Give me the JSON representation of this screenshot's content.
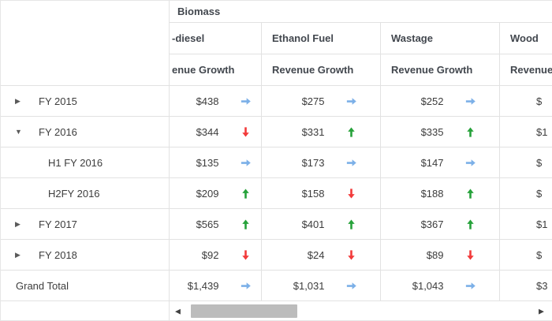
{
  "pivot": {
    "top_header": "Biomass",
    "columns": [
      {
        "name": "-diesel",
        "measure": "enue Growth"
      },
      {
        "name": "Ethanol Fuel",
        "measure": "Revenue Growth"
      },
      {
        "name": "Wastage",
        "measure": "Revenue Growth"
      },
      {
        "name": "Wood",
        "measure": "Revenue"
      }
    ],
    "rows": [
      {
        "label": "FY 2015",
        "expand": "collapsed",
        "cells": [
          {
            "value": "$438",
            "trend": "flat"
          },
          {
            "value": "$275",
            "trend": "flat"
          },
          {
            "value": "$252",
            "trend": "flat"
          },
          {
            "value": "$",
            "trend": "none"
          }
        ]
      },
      {
        "label": "FY 2016",
        "expand": "expanded",
        "cells": [
          {
            "value": "$344",
            "trend": "down"
          },
          {
            "value": "$331",
            "trend": "up"
          },
          {
            "value": "$335",
            "trend": "up"
          },
          {
            "value": "$1",
            "trend": "none"
          }
        ]
      },
      {
        "label": "H1 FY 2016",
        "expand": "none",
        "cells": [
          {
            "value": "$135",
            "trend": "flat"
          },
          {
            "value": "$173",
            "trend": "flat"
          },
          {
            "value": "$147",
            "trend": "flat"
          },
          {
            "value": "$",
            "trend": "none"
          }
        ]
      },
      {
        "label": "H2FY 2016",
        "expand": "none",
        "cells": [
          {
            "value": "$209",
            "trend": "up"
          },
          {
            "value": "$158",
            "trend": "down"
          },
          {
            "value": "$188",
            "trend": "up"
          },
          {
            "value": "$",
            "trend": "none"
          }
        ]
      },
      {
        "label": "FY 2017",
        "expand": "collapsed",
        "cells": [
          {
            "value": "$565",
            "trend": "up"
          },
          {
            "value": "$401",
            "trend": "up"
          },
          {
            "value": "$367",
            "trend": "up"
          },
          {
            "value": "$1",
            "trend": "none"
          }
        ]
      },
      {
        "label": "FY 2018",
        "expand": "collapsed",
        "cells": [
          {
            "value": "$92",
            "trend": "down"
          },
          {
            "value": "$24",
            "trend": "down"
          },
          {
            "value": "$89",
            "trend": "down"
          },
          {
            "value": "$",
            "trend": "none"
          }
        ]
      },
      {
        "label": "Grand Total",
        "expand": "none",
        "cells": [
          {
            "value": "$1,439",
            "trend": "flat"
          },
          {
            "value": "$1,031",
            "trend": "flat"
          },
          {
            "value": "$1,043",
            "trend": "flat"
          },
          {
            "value": "$3",
            "trend": "none"
          }
        ]
      }
    ],
    "icons": {
      "collapsed": "▶",
      "expanded": "▼"
    },
    "trend_colors": {
      "up": "#27A23B",
      "down": "#F23B3B",
      "flat": "#7CB0E8"
    }
  },
  "scrollbar": {
    "left_arrow": "◀",
    "right_arrow": "▶"
  }
}
